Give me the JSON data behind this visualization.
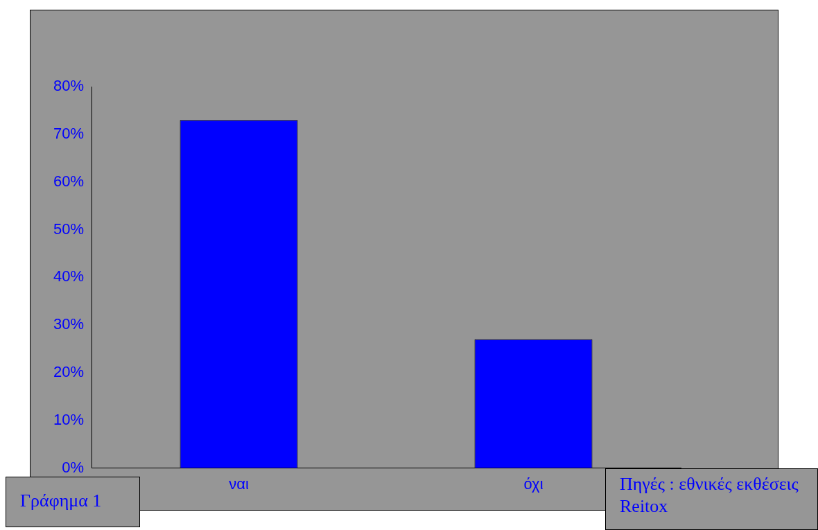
{
  "chart_data": {
    "type": "bar",
    "categories": [
      "ναι",
      "όχι"
    ],
    "values": [
      73,
      27
    ],
    "color": "#0000ff",
    "ylim": [
      0,
      80
    ],
    "yticks": [
      {
        "value": 0,
        "label": "0%"
      },
      {
        "value": 10,
        "label": "10%"
      },
      {
        "value": 20,
        "label": "20%"
      },
      {
        "value": 30,
        "label": "30%"
      },
      {
        "value": 40,
        "label": "40%"
      },
      {
        "value": 50,
        "label": "50%"
      },
      {
        "value": 60,
        "label": "60%"
      },
      {
        "value": 70,
        "label": "70%"
      },
      {
        "value": 80,
        "label": "80%"
      }
    ],
    "grid": false,
    "legend": false,
    "annotations": [
      "Γράφημα 1",
      "Πηγές : εθνικές εκθέσεις Reitox"
    ]
  }
}
